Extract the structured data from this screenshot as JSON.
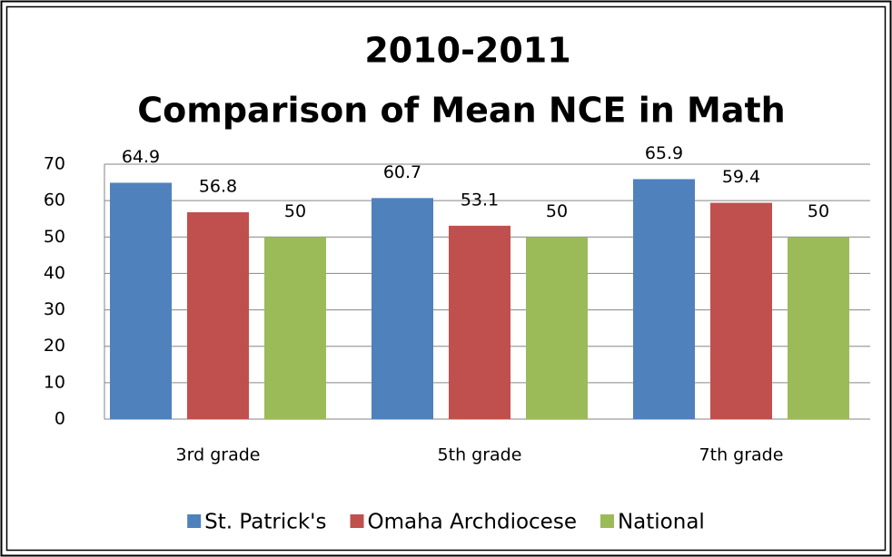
{
  "chart_data": {
    "type": "bar",
    "title": [
      "2010-2011",
      "Comparison of Mean NCE in Math"
    ],
    "categories": [
      "3rd grade",
      "5th grade",
      "7th grade"
    ],
    "series": [
      {
        "name": "St. Patrick's",
        "color": "#4f81bd",
        "values": [
          64.9,
          60.7,
          65.9
        ]
      },
      {
        "name": "Omaha Archdiocese",
        "color": "#c0504d",
        "values": [
          56.8,
          53.1,
          59.4
        ]
      },
      {
        "name": "National",
        "color": "#9bbb59",
        "values": [
          50,
          50,
          50
        ]
      }
    ],
    "ylim": [
      0,
      70
    ],
    "yticks": [
      0,
      10,
      20,
      30,
      40,
      50,
      60,
      70
    ],
    "grid": true,
    "legend": "bottom"
  }
}
